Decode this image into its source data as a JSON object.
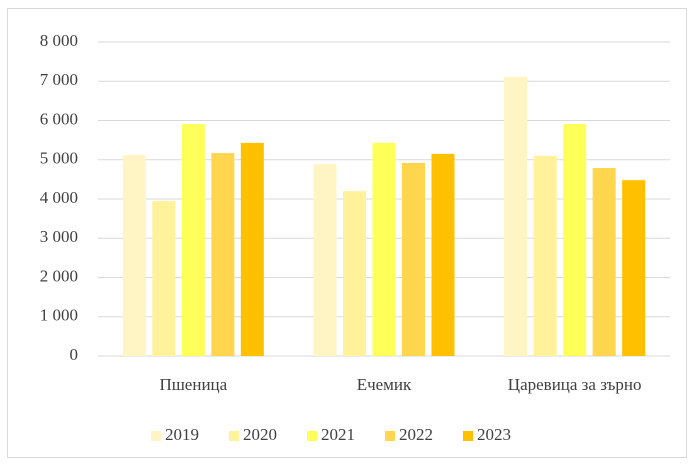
{
  "chart_data": {
    "type": "bar",
    "categories": [
      "Пшеница",
      "Ечемик",
      "Царевица за зърно"
    ],
    "series": [
      {
        "name": "2019",
        "color": "#fff5c4",
        "values": [
          5120,
          4890,
          7110
        ]
      },
      {
        "name": "2020",
        "color": "#fff29a",
        "values": [
          3950,
          4200,
          5100
        ]
      },
      {
        "name": "2021",
        "color": "#ffff5a",
        "values": [
          5910,
          5430,
          5910
        ]
      },
      {
        "name": "2022",
        "color": "#ffd64d",
        "values": [
          5170,
          4920,
          4790
        ]
      },
      {
        "name": "2023",
        "color": "#ffc000",
        "values": [
          5430,
          5150,
          4480
        ]
      }
    ],
    "ylim": [
      0,
      8000
    ],
    "yticks": [
      0,
      {
        "value": 1000,
        "label": "1 000"
      },
      {
        "value": 2000,
        "label": "2 000"
      },
      {
        "value": 3000,
        "label": "3 000"
      },
      {
        "value": 4000,
        "label": "4 000"
      },
      {
        "value": 5000,
        "label": "5 000"
      },
      {
        "value": 6000,
        "label": "6 000"
      },
      {
        "value": 7000,
        "label": "7 000"
      },
      {
        "value": 8000,
        "label": "8 000"
      }
    ],
    "grid": true,
    "legend": "bottom"
  }
}
